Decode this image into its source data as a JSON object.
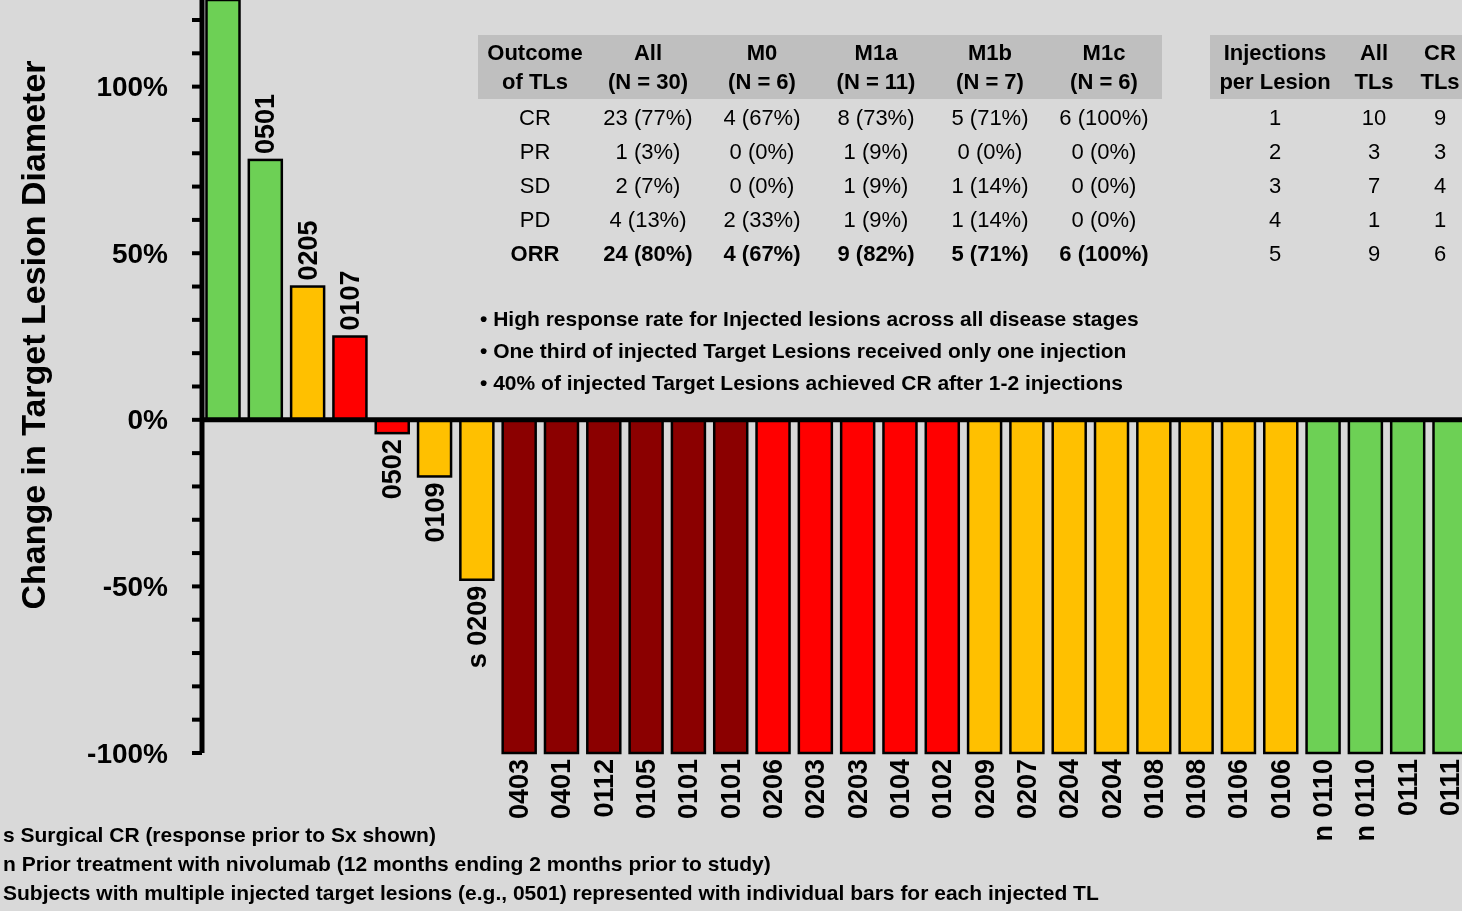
{
  "chart_data": {
    "type": "bar",
    "ylabel": "Change in Target Lesion Diameter",
    "categories": [
      null,
      "0501",
      "0205",
      "0107",
      "0502",
      "0109",
      "s 0209",
      "0403",
      "0401",
      "0112",
      "0105",
      "0101",
      "0101",
      "0206",
      "0203",
      "0203",
      "0104",
      "0102",
      "0209",
      "0207",
      "0204",
      "0204",
      "0108",
      "0108",
      "0106",
      "0106",
      "n 0110",
      "n 0110",
      "0111",
      "0111"
    ],
    "values": [
      126,
      78,
      40,
      25,
      -4,
      -17,
      -48,
      -100,
      -100,
      -100,
      -100,
      -100,
      -100,
      -100,
      -100,
      -100,
      -100,
      -100,
      -100,
      -100,
      -100,
      -100,
      -100,
      -100,
      -100,
      -100,
      -100,
      -100,
      -100,
      -100
    ],
    "colors": [
      "#6dd055",
      "#6dd055",
      "#ffc000",
      "#ff0000",
      "#ff0000",
      "#ffc000",
      "#ffc000",
      "#8b0000",
      "#8b0000",
      "#8b0000",
      "#8b0000",
      "#8b0000",
      "#8b0000",
      "#ff0000",
      "#ff0000",
      "#ff0000",
      "#ff0000",
      "#ff0000",
      "#ffc000",
      "#ffc000",
      "#ffc000",
      "#ffc000",
      "#ffc000",
      "#ffc000",
      "#ffc000",
      "#ffc000",
      "#6dd055",
      "#6dd055",
      "#6dd055",
      "#6dd055"
    ],
    "ylim": [
      -100,
      126
    ],
    "yticks": [
      {
        "value": -100,
        "label": "-100%"
      },
      {
        "value": -90,
        "label": null
      },
      {
        "value": -80,
        "label": null
      },
      {
        "value": -70,
        "label": null
      },
      {
        "value": -60,
        "label": null
      },
      {
        "value": -50,
        "label": "-50%"
      },
      {
        "value": -40,
        "label": null
      },
      {
        "value": -30,
        "label": null
      },
      {
        "value": -20,
        "label": null
      },
      {
        "value": -10,
        "label": null
      },
      {
        "value": 0,
        "label": "0%"
      },
      {
        "value": 10,
        "label": null
      },
      {
        "value": 20,
        "label": null
      },
      {
        "value": 30,
        "label": null
      },
      {
        "value": 40,
        "label": null
      },
      {
        "value": 50,
        "label": "50%"
      },
      {
        "value": 60,
        "label": null
      },
      {
        "value": 70,
        "label": null
      },
      {
        "value": 80,
        "label": null
      },
      {
        "value": 90,
        "label": null
      },
      {
        "value": 100,
        "label": "100%"
      },
      {
        "value": 110,
        "label": null
      },
      {
        "value": 120,
        "label": null
      }
    ],
    "annotations": [
      "Outcome\nof TLs",
      "All\n(N = 30)",
      "M0\n(N = 6)",
      "M1a\n(N = 11)",
      "M1b\n(N = 7)",
      "M1c\n(N = 6)",
      "CR",
      "23 (77%)",
      "4 (67%)",
      "8 (73%)",
      "5 (71%)",
      "6 (100%)",
      "PR",
      "1 (3%)",
      "0 (0%)",
      "1 (9%)",
      "0 (0%)",
      "0 (0%)",
      "SD",
      "2 (7%)",
      "0 (0%)",
      "1 (9%)",
      "1 (14%)",
      "0 (0%)",
      "PD",
      "4 (13%)",
      "2 (33%)",
      "1 (9%)",
      "1 (14%)",
      "0 (0%)",
      "ORR",
      "24 (80%)",
      "4 (67%)",
      "9 (82%)",
      "5 (71%)",
      "6 (100%)",
      "Injections\nper Lesion",
      "All\nTLs",
      "CR\nTLs",
      "1",
      "10",
      "9",
      "2",
      "3",
      "3",
      "3",
      "7",
      "4",
      "4",
      "1",
      "1",
      "5",
      "9",
      "6",
      "• High response rate for Injected lesions across all disease stages",
      "• One third of injected Target Lesions received only one injection",
      "• 40% of injected Target Lesions achieved CR after 1-2 injections",
      "s Surgical CR (response prior to Sx shown)",
      "n Prior treatment with nivolumab (12 months ending 2 months prior to study)",
      "Subjects with multiple injected target lesions (e.g., 0501) represented with individual bars for each injected TL"
    ]
  }
}
